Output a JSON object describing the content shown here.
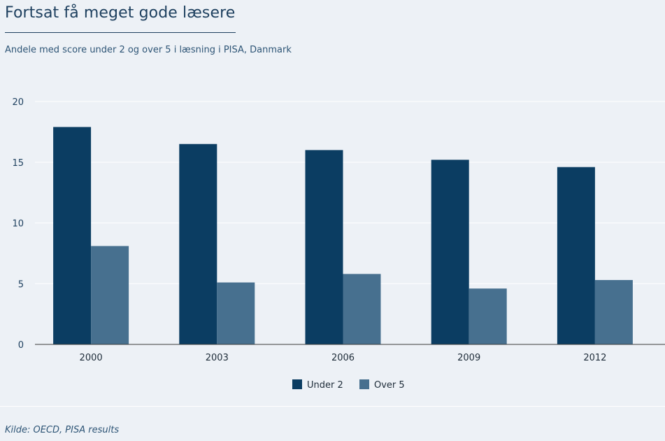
{
  "colors": {
    "background": "#edf1f6",
    "under2": "#0b3d62",
    "over5": "#47708f",
    "text": "#1d3f5e",
    "grid": "#ffffff"
  },
  "chart_data": {
    "type": "bar",
    "title": "Fortsat få meget gode læsere",
    "subtitle": "Andele med score under 2 og over 5 i læsning i PISA, Danmark",
    "xlabel": "",
    "ylabel": "",
    "categories": [
      "2000",
      "2003",
      "2006",
      "2009",
      "2012"
    ],
    "series": [
      {
        "name": "Under 2",
        "color": "#0b3d62",
        "values": [
          17.9,
          16.5,
          16.0,
          15.2,
          14.6
        ]
      },
      {
        "name": "Over 5",
        "color": "#47708f",
        "values": [
          8.1,
          5.1,
          5.8,
          4.6,
          5.3
        ]
      }
    ],
    "ylim": [
      0,
      20
    ],
    "yticks": [
      0,
      5,
      10,
      15,
      20
    ],
    "grid": true,
    "legend_position": "bottom-center",
    "source": "Kilde: OECD, PISA results"
  }
}
